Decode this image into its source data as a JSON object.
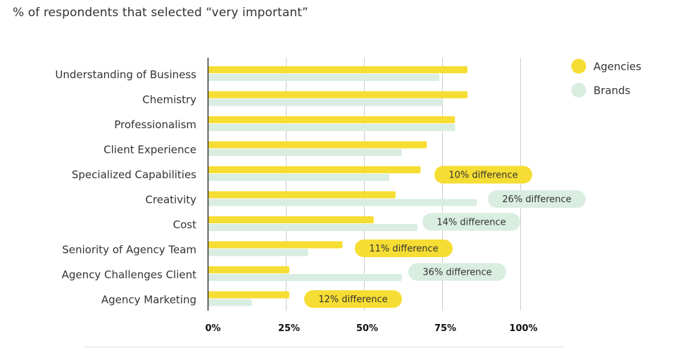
{
  "chart_data": {
    "type": "bar",
    "orientation": "horizontal",
    "title": "% of respondents that selected “very important”",
    "categories": [
      "Understanding of Business",
      "Chemistry",
      "Professionalism",
      "Client Experience",
      "Specialized Capabilities",
      "Creativity",
      "Cost",
      "Seniority of Agency Team",
      "Agency Challenges Client",
      "Agency Marketing"
    ],
    "series": [
      {
        "name": "Agencies",
        "color": "#f6dd33",
        "values": [
          83,
          83,
          79,
          70,
          68,
          60,
          53,
          43,
          26,
          26
        ]
      },
      {
        "name": "Brands",
        "color": "#d9ede0",
        "values": [
          74,
          75,
          79,
          62,
          58,
          86,
          67,
          32,
          62,
          14
        ]
      }
    ],
    "xlim": [
      0,
      100
    ],
    "x_ticks": [
      "0%",
      "25%",
      "50%",
      "75%",
      "100%"
    ],
    "x_tick_values": [
      0,
      25,
      50,
      75,
      100
    ],
    "grid": true,
    "legend": "top-right",
    "annotations": [
      {
        "category": "Specialized Capabilities",
        "text": "10% difference",
        "color": "#f6dd33"
      },
      {
        "category": "Creativity",
        "text": "26% difference",
        "color": "#d9ede0"
      },
      {
        "category": "Cost",
        "text": "14% difference",
        "color": "#d9ede0"
      },
      {
        "category": "Seniority of Agency Team",
        "text": "11% difference",
        "color": "#f6dd33"
      },
      {
        "category": "Agency Challenges Client",
        "text": "36% difference",
        "color": "#d9ede0"
      },
      {
        "category": "Agency Marketing",
        "text": "12% difference",
        "color": "#f6dd33"
      }
    ]
  }
}
